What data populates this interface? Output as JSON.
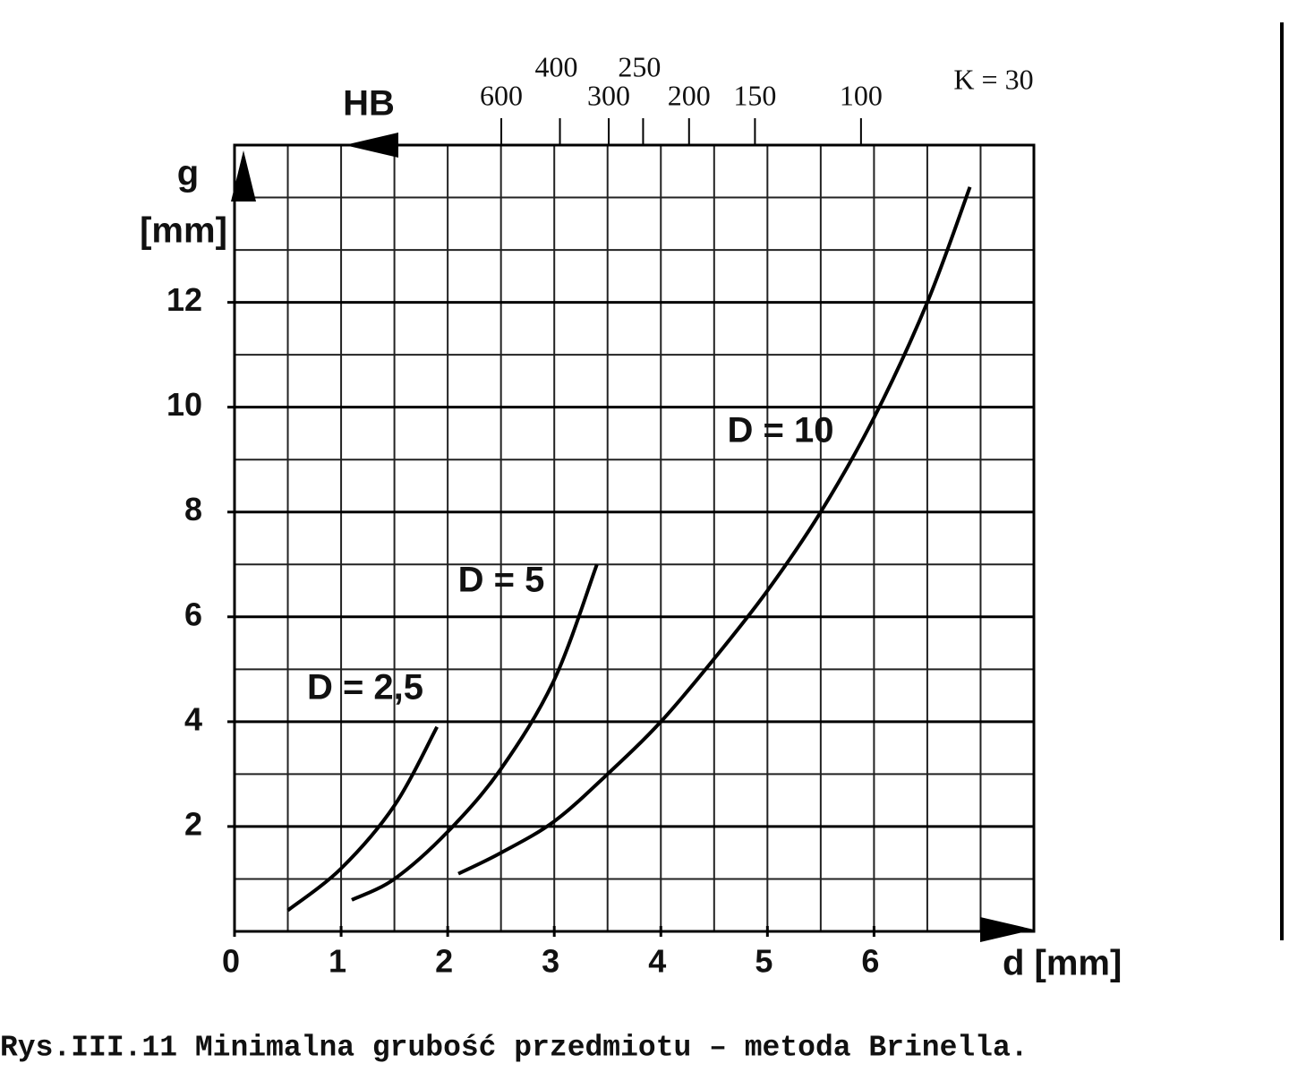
{
  "chart_data": {
    "type": "line",
    "title": "Rys.III.11  Minimalna grubość przedmiotu – metoda Brinella.",
    "y_label_top": "g",
    "y_label": "[mm]",
    "x_label": "d [mm]",
    "xlim": [
      0,
      7.5
    ],
    "ylim": [
      0,
      15
    ],
    "xticks": [
      0,
      1,
      2,
      3,
      4,
      5,
      6
    ],
    "yticks": [
      2,
      4,
      6,
      8,
      10,
      12
    ],
    "grid": true,
    "hb_axis": {
      "label": "HB",
      "note": "K = 30",
      "k": 30,
      "ticks": [
        600,
        400,
        300,
        250,
        200,
        150,
        100
      ]
    },
    "series": [
      {
        "name": "D = 2,5",
        "color": "#000000",
        "x": [
          0.5,
          1,
          1.5,
          1.9
        ],
        "values": [
          0.4,
          1.2,
          2.4,
          3.9
        ]
      },
      {
        "name": "D = 5",
        "color": "#000000",
        "x": [
          1.1,
          1.5,
          2,
          2.5,
          3,
          3.4
        ],
        "values": [
          0.6,
          1.0,
          1.9,
          3.1,
          4.8,
          7.0
        ]
      },
      {
        "name": "D = 10",
        "color": "#000000",
        "x": [
          2.1,
          2.5,
          3,
          3.5,
          4,
          4.5,
          5,
          5.5,
          6,
          6.5,
          6.9
        ],
        "values": [
          1.1,
          1.5,
          2.1,
          3.0,
          4.0,
          5.2,
          6.5,
          8.0,
          9.8,
          12.0,
          14.2
        ]
      }
    ]
  }
}
